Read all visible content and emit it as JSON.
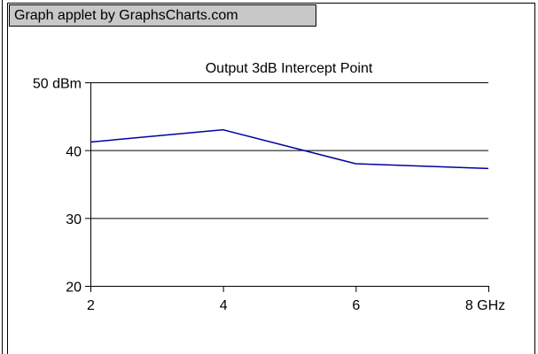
{
  "banner": "Graph applet by GraphsCharts.com",
  "chart_data": {
    "type": "line",
    "title": "Output 3dB Intercept Point",
    "x": [
      2,
      4,
      6,
      8
    ],
    "series": [
      {
        "color": "#0000a0",
        "values": [
          41.2,
          43.0,
          38.0,
          37.3
        ]
      }
    ],
    "xlim": [
      2,
      8
    ],
    "xticks": [
      2,
      4,
      6,
      {
        "value": 8,
        "label": "8 GHz"
      }
    ],
    "ylim": [
      20,
      50
    ],
    "yticks": [
      {
        "value": 50,
        "label": "50 dBm"
      },
      40,
      30,
      20
    ],
    "grid": true
  }
}
